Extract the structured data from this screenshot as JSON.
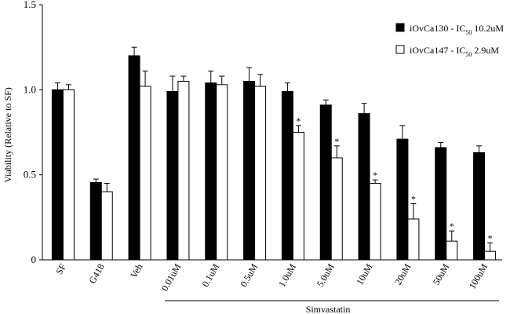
{
  "chart_data": {
    "type": "bar",
    "title": "",
    "ylabel": "Viability (Relative to SF)",
    "xlabel": "",
    "group_label": "Simvastatin",
    "ylim": [
      0,
      1.5
    ],
    "yticks": [
      "0",
      "0.5",
      "1.0",
      "1.5"
    ],
    "categories": [
      "SF",
      "G418",
      "Veh",
      "0.01uM",
      "0.1uM",
      "0.5uM",
      "1.0uM",
      "5.0uM",
      "10uM",
      "20uM",
      "50uM",
      "100uM"
    ],
    "series": [
      {
        "name": "iOvCa130 - IC50 10.2uM",
        "legend_prefix": "iOvCa130 - IC",
        "legend_sub": "50",
        "legend_suffix": " 10.2uM",
        "color": "#000000",
        "values": [
          1.0,
          0.455,
          1.2,
          0.99,
          1.04,
          1.05,
          0.99,
          0.91,
          0.86,
          0.71,
          0.66,
          0.63
        ],
        "errors": [
          0.04,
          0.02,
          0.05,
          0.09,
          0.07,
          0.08,
          0.05,
          0.03,
          0.06,
          0.08,
          0.03,
          0.04
        ],
        "significant": [
          false,
          false,
          false,
          false,
          false,
          false,
          false,
          false,
          false,
          false,
          false,
          false
        ]
      },
      {
        "name": "iOvCa147 - IC50 2.9uM",
        "legend_prefix": "iOvCa147 - IC",
        "legend_sub": "50",
        "legend_suffix": " 2.9uM",
        "color": "#ffffff",
        "values": [
          1.0,
          0.4,
          1.02,
          1.05,
          1.03,
          1.02,
          0.75,
          0.6,
          0.45,
          0.24,
          0.11,
          0.05
        ],
        "errors": [
          0.03,
          0.05,
          0.09,
          0.03,
          0.05,
          0.07,
          0.04,
          0.07,
          0.02,
          0.09,
          0.06,
          0.05
        ],
        "significant": [
          false,
          false,
          false,
          false,
          false,
          false,
          true,
          true,
          true,
          true,
          true,
          true
        ]
      }
    ],
    "significance_marker": "*",
    "legend_position": "top-right"
  }
}
